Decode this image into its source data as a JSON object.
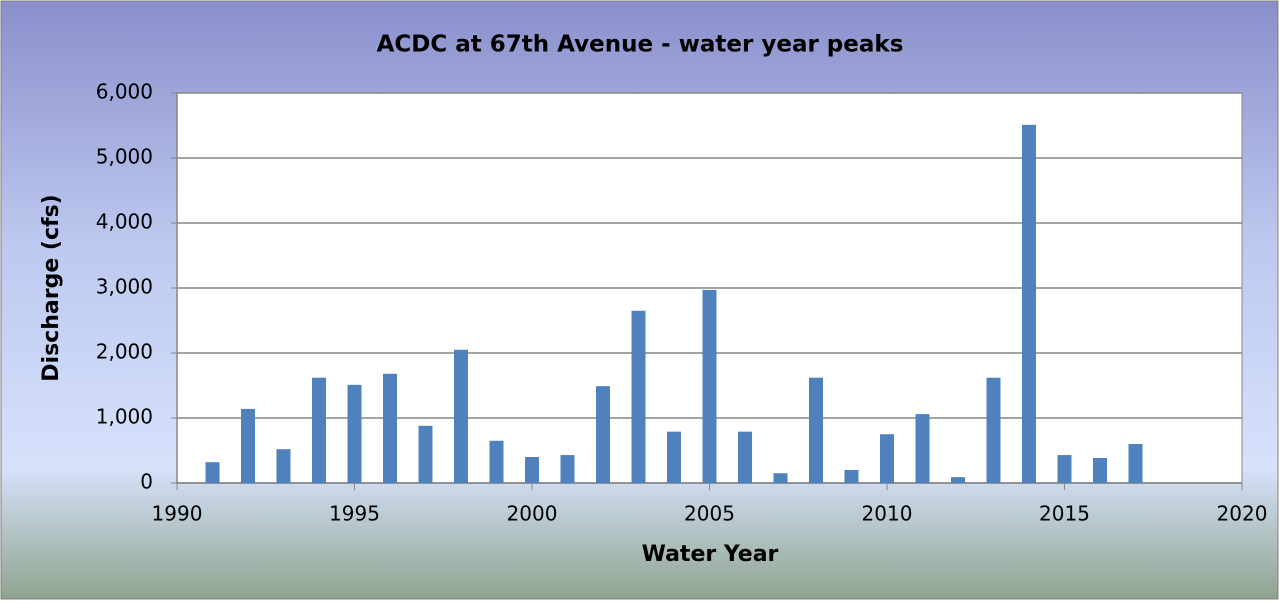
{
  "chart_data": {
    "type": "bar",
    "title": "ACDC at 67th Avenue - water year peaks",
    "x_label": "Water Year",
    "y_label": "Discharge (cfs)",
    "x": [
      1991,
      1992,
      1993,
      1994,
      1995,
      1996,
      1997,
      1998,
      1999,
      2000,
      2001,
      2002,
      2003,
      2004,
      2005,
      2006,
      2007,
      2008,
      2009,
      2010,
      2011,
      2012,
      2013,
      2014,
      2015,
      2016,
      2017
    ],
    "values": [
      320,
      1140,
      520,
      1620,
      1510,
      1680,
      880,
      2050,
      650,
      400,
      430,
      1490,
      2650,
      790,
      2970,
      790,
      150,
      1620,
      200,
      750,
      1060,
      90,
      1620,
      5510,
      430,
      385,
      600
    ],
    "color": "#4f81bd",
    "xlim": [
      1990,
      2020
    ],
    "xticks": [
      1990,
      1995,
      2000,
      2005,
      2010,
      2015,
      2020
    ],
    "ylim": [
      0,
      6000
    ],
    "yticks": [
      0,
      {
        "value": 1000,
        "label": "1,000"
      },
      {
        "value": 2000,
        "label": "2,000"
      },
      {
        "value": 3000,
        "label": "3,000"
      },
      {
        "value": 4000,
        "label": "4,000"
      },
      {
        "value": 5000,
        "label": "5,000"
      },
      {
        "value": 6000,
        "label": "6,000"
      }
    ],
    "grid": true
  }
}
